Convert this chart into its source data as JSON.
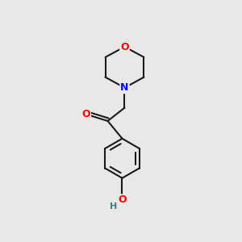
{
  "background_color": "#e8e8e8",
  "bond_color": "#1a1a1a",
  "bond_width": 1.5,
  "atom_colors": {
    "O": "#ff0000",
    "N": "#0000ff",
    "C": "#1a1a1a",
    "H": "#3a8080"
  },
  "font_size_atom": 9,
  "font_size_H": 8,
  "fig_size": [
    3.0,
    3.0
  ],
  "dpi": 100
}
